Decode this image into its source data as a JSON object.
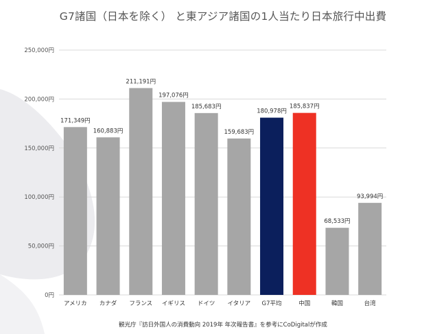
{
  "title": "G7諸国（日本を除く） と東アジア諸国の1人当たり日本旅行中出費",
  "source": "観光庁『訪日外国人の消費動向 2019年 年次報告書』を参考にCoDigitalが作成",
  "chart_data": {
    "type": "bar",
    "title": "G7諸国（日本を除く） と東アジア諸国の1人当たり日本旅行中出費",
    "ylim": [
      0,
      250000
    ],
    "yticks": [
      0,
      50000,
      100000,
      150000,
      200000,
      250000
    ],
    "ytick_labels": [
      "0円",
      "50,000円",
      "100,000円",
      "150,000円",
      "200,000円",
      "250,000円"
    ],
    "grid": true,
    "legend": "none",
    "categories": [
      "アメリカ",
      "カナダ",
      "フランス",
      "イギリス",
      "ドイツ",
      "イタリア",
      "G7平均",
      "中国",
      "韓国",
      "台湾"
    ],
    "values": [
      171349,
      160883,
      211191,
      197076,
      185683,
      159683,
      180978,
      185837,
      68533,
      93994
    ],
    "value_labels": [
      "171,349円",
      "160,883円",
      "211,191円",
      "197,076円",
      "185,683円",
      "159,683円",
      "180,978円",
      "185,837円",
      "68,533円",
      "93,994円"
    ],
    "colors": [
      "#a6a6a6",
      "#a6a6a6",
      "#a6a6a6",
      "#a6a6a6",
      "#a6a6a6",
      "#a6a6a6",
      "#0b1f5c",
      "#ee3124",
      "#a6a6a6",
      "#a6a6a6"
    ]
  }
}
